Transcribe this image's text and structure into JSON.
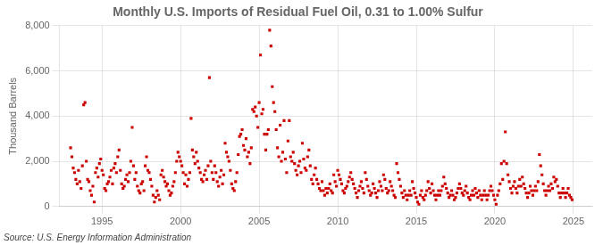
{
  "chart_data": {
    "type": "scatter",
    "title": "Monthly U.S. Imports of Residual Fuel Oil, 0.31 to 1.00% Sulfur",
    "ylabel": "Thousand Barrels",
    "annotations": [
      "Source: U.S. Energy Information Administration"
    ],
    "color": "#cc0000",
    "marker": "square",
    "grid": true,
    "xlim": [
      1992.3,
      2026.2
    ],
    "xticks": [
      1995,
      2000,
      2005,
      2010,
      2015,
      2020,
      2025
    ],
    "ylim": [
      0,
      8000
    ],
    "yticks": [
      0,
      {
        "value": 2000,
        "label": "2,000"
      },
      {
        "value": 4000,
        "label": "4,000"
      },
      {
        "value": 6000,
        "label": "6,000"
      },
      {
        "value": 8000,
        "label": "8,000"
      }
    ],
    "x": [
      1993,
      1993.0833333333,
      1993.1666666667,
      1993.25,
      1993.3333333333,
      1993.4166666667,
      1993.5,
      1993.5833333333,
      1993.6666666667,
      1993.75,
      1993.8333333333,
      1993.9166666667,
      1994,
      1994.0833333333,
      1994.1666666667,
      1994.25,
      1994.3333333333,
      1994.4166666667,
      1994.5,
      1994.5833333333,
      1994.6666666667,
      1994.75,
      1994.8333333333,
      1994.9166666667,
      1995,
      1995.0833333333,
      1995.1666666667,
      1995.25,
      1995.3333333333,
      1995.4166666667,
      1995.5,
      1995.5833333333,
      1995.6666666667,
      1995.75,
      1995.8333333333,
      1995.9166666667,
      1996,
      1996.0833333333,
      1996.1666666667,
      1996.25,
      1996.3333333333,
      1996.4166666667,
      1996.5,
      1996.5833333333,
      1996.6666666667,
      1996.75,
      1996.8333333333,
      1996.9166666667,
      1997,
      1997.0833333333,
      1997.1666666667,
      1997.25,
      1997.3333333333,
      1997.4166666667,
      1997.5,
      1997.5833333333,
      1997.6666666667,
      1997.75,
      1997.8333333333,
      1997.9166666667,
      1998,
      1998.0833333333,
      1998.1666666667,
      1998.25,
      1998.3333333333,
      1998.4166666667,
      1998.5,
      1998.5833333333,
      1998.6666666667,
      1998.75,
      1998.8333333333,
      1998.9166666667,
      1999,
      1999.0833333333,
      1999.1666666667,
      1999.25,
      1999.3333333333,
      1999.4166666667,
      1999.5,
      1999.5833333333,
      1999.6666666667,
      1999.75,
      1999.8333333333,
      1999.9166666667,
      2000,
      2000.0833333333,
      2000.1666666667,
      2000.25,
      2000.3333333333,
      2000.4166666667,
      2000.5,
      2000.5833333333,
      2000.6666666667,
      2000.75,
      2000.8333333333,
      2000.9166666667,
      2001,
      2001.0833333333,
      2001.1666666667,
      2001.25,
      2001.3333333333,
      2001.4166666667,
      2001.5,
      2001.5833333333,
      2001.6666666667,
      2001.75,
      2001.8333333333,
      2001.9166666667,
      2002,
      2002.0833333333,
      2002.1666666667,
      2002.25,
      2002.3333333333,
      2002.4166666667,
      2002.5,
      2002.5833333333,
      2002.6666666667,
      2002.75,
      2002.8333333333,
      2002.9166666667,
      2003,
      2003.0833333333,
      2003.1666666667,
      2003.25,
      2003.3333333333,
      2003.4166666667,
      2003.5,
      2003.5833333333,
      2003.6666666667,
      2003.75,
      2003.8333333333,
      2003.9166666667,
      2004,
      2004.0833333333,
      2004.1666666667,
      2004.25,
      2004.3333333333,
      2004.4166666667,
      2004.5,
      2004.5833333333,
      2004.6666666667,
      2004.75,
      2004.8333333333,
      2004.9166666667,
      2005,
      2005.0833333333,
      2005.1666666667,
      2005.25,
      2005.3333333333,
      2005.4166666667,
      2005.5,
      2005.5833333333,
      2005.6666666667,
      2005.75,
      2005.8333333333,
      2005.9166666667,
      2006,
      2006.0833333333,
      2006.1666666667,
      2006.25,
      2006.3333333333,
      2006.4166666667,
      2006.5,
      2006.5833333333,
      2006.6666666667,
      2006.75,
      2006.8333333333,
      2006.9166666667,
      2007,
      2007.0833333333,
      2007.1666666667,
      2007.25,
      2007.3333333333,
      2007.4166666667,
      2007.5,
      2007.5833333333,
      2007.6666666667,
      2007.75,
      2007.8333333333,
      2007.9166666667,
      2008,
      2008.0833333333,
      2008.1666666667,
      2008.25,
      2008.3333333333,
      2008.4166666667,
      2008.5,
      2008.5833333333,
      2008.6666666667,
      2008.75,
      2008.8333333333,
      2008.9166666667,
      2009,
      2009.0833333333,
      2009.1666666667,
      2009.25,
      2009.3333333333,
      2009.4166666667,
      2009.5,
      2009.5833333333,
      2009.6666666667,
      2009.75,
      2009.8333333333,
      2009.9166666667,
      2010,
      2010.0833333333,
      2010.1666666667,
      2010.25,
      2010.3333333333,
      2010.4166666667,
      2010.5,
      2010.5833333333,
      2010.6666666667,
      2010.75,
      2010.8333333333,
      2010.9166666667,
      2011,
      2011.0833333333,
      2011.1666666667,
      2011.25,
      2011.3333333333,
      2011.4166666667,
      2011.5,
      2011.5833333333,
      2011.6666666667,
      2011.75,
      2011.8333333333,
      2011.9166666667,
      2012,
      2012.0833333333,
      2012.1666666667,
      2012.25,
      2012.3333333333,
      2012.4166666667,
      2012.5,
      2012.5833333333,
      2012.6666666667,
      2012.75,
      2012.8333333333,
      2012.9166666667,
      2013,
      2013.0833333333,
      2013.1666666667,
      2013.25,
      2013.3333333333,
      2013.4166666667,
      2013.5,
      2013.5833333333,
      2013.6666666667,
      2013.75,
      2013.8333333333,
      2013.9166666667,
      2014,
      2014.0833333333,
      2014.1666666667,
      2014.25,
      2014.3333333333,
      2014.4166666667,
      2014.5,
      2014.5833333333,
      2014.6666666667,
      2014.75,
      2014.8333333333,
      2014.9166666667,
      2015,
      2015.0833333333,
      2015.1666666667,
      2015.25,
      2015.3333333333,
      2015.4166666667,
      2015.5,
      2015.5833333333,
      2015.6666666667,
      2015.75,
      2015.8333333333,
      2015.9166666667,
      2016,
      2016.0833333333,
      2016.1666666667,
      2016.25,
      2016.3333333333,
      2016.4166666667,
      2016.5,
      2016.5833333333,
      2016.6666666667,
      2016.75,
      2016.8333333333,
      2016.9166666667,
      2017,
      2017.0833333333,
      2017.1666666667,
      2017.25,
      2017.3333333333,
      2017.4166666667,
      2017.5,
      2017.5833333333,
      2017.6666666667,
      2017.75,
      2017.8333333333,
      2017.9166666667,
      2018,
      2018.0833333333,
      2018.1666666667,
      2018.25,
      2018.3333333333,
      2018.4166666667,
      2018.5,
      2018.5833333333,
      2018.6666666667,
      2018.75,
      2018.8333333333,
      2018.9166666667,
      2019,
      2019.0833333333,
      2019.1666666667,
      2019.25,
      2019.3333333333,
      2019.4166666667,
      2019.5,
      2019.5833333333,
      2019.6666666667,
      2019.75,
      2019.8333333333,
      2019.9166666667,
      2020,
      2020.0833333333,
      2020.1666666667,
      2020.25,
      2020.3333333333,
      2020.4166666667,
      2020.5,
      2020.5833333333,
      2020.6666666667,
      2020.75,
      2020.8333333333,
      2020.9166666667,
      2021,
      2021.0833333333,
      2021.1666666667,
      2021.25,
      2021.3333333333,
      2021.4166666667,
      2021.5,
      2021.5833333333,
      2021.6666666667,
      2021.75,
      2021.8333333333,
      2021.9166666667,
      2022,
      2022.0833333333,
      2022.1666666667,
      2022.25,
      2022.3333333333,
      2022.4166666667,
      2022.5,
      2022.5833333333,
      2022.6666666667,
      2022.75,
      2022.8333333333,
      2022.9166666667,
      2023,
      2023.0833333333,
      2023.1666666667,
      2023.25,
      2023.3333333333,
      2023.4166666667,
      2023.5,
      2023.5833333333,
      2023.6666666667,
      2023.75,
      2023.8333333333,
      2023.9166666667,
      2024,
      2024.0833333333,
      2024.1666666667,
      2024.25,
      2024.3333333333,
      2024.4166666667,
      2024.5,
      2024.5833333333,
      2024.6666666667,
      2024.75,
      2024.8333333333,
      2024.9166666667
    ],
    "values": [
      2600,
      2200,
      1700,
      1500,
      1200,
      1000,
      1600,
      1100,
      800,
      1800,
      4500,
      4600,
      2000,
      1200,
      1100,
      700,
      500,
      900,
      200,
      1500,
      1700,
      1300,
      1900,
      2100,
      1600,
      1400,
      800,
      700,
      1000,
      1100,
      1300,
      1600,
      1000,
      1700,
      1900,
      1500,
      2200,
      2500,
      1600,
      1000,
      800,
      900,
      1200,
      1400,
      1100,
      1500,
      2000,
      3500,
      1800,
      1200,
      1500,
      900,
      700,
      600,
      1000,
      1100,
      700,
      1800,
      2200,
      1600,
      1500,
      1200,
      900,
      500,
      200,
      400,
      700,
      500,
      300,
      1400,
      1600,
      1300,
      1100,
      900,
      1000,
      700,
      500,
      600,
      900,
      1100,
      1500,
      2000,
      2400,
      2200,
      2000,
      1800,
      1500,
      1000,
      1400,
      900,
      1200,
      1500,
      3900,
      2500,
      2200,
      1900,
      2400,
      2000,
      1700,
      1500,
      1200,
      1100,
      1400,
      1600,
      1200,
      1800,
      5700,
      2000,
      1500,
      1200,
      1800,
      1500,
      1100,
      900,
      1300,
      1600,
      1000,
      1400,
      2800,
      2400,
      2200,
      2000,
      1600,
      1000,
      800,
      700,
      1100,
      1500,
      2300,
      3100,
      3200,
      3400,
      2700,
      2500,
      3000,
      2200,
      2400,
      1900,
      2600,
      4300,
      4200,
      4400,
      4000,
      3500,
      4600,
      6700,
      4100,
      4300,
      3200,
      2500,
      3200,
      3400,
      7800,
      7100,
      5300,
      4600,
      4200,
      3400,
      2600,
      2200,
      3600,
      2000,
      2400,
      3800,
      2100,
      1500,
      2900,
      3800,
      2200,
      2000,
      2400,
      1900,
      1600,
      1400,
      1800,
      2000,
      1500,
      2800,
      2100,
      1700,
      1600,
      2200,
      2500,
      1800,
      1200,
      1000,
      1400,
      1700,
      1200,
      1000,
      800,
      700,
      1100,
      700,
      500,
      800,
      600,
      800,
      1000,
      700,
      600,
      1400,
      1100,
      900,
      1600,
      1400,
      1200,
      1000,
      700,
      600,
      800,
      900,
      1100,
      1300,
      1500,
      1200,
      1000,
      800,
      600,
      400,
      700,
      900,
      1100,
      800,
      600,
      1500,
      1200,
      900,
      700,
      500,
      600,
      1000,
      800,
      600,
      400,
      700,
      1100,
      900,
      700,
      1400,
      1200,
      800,
      600,
      700,
      1100,
      900,
      700,
      500,
      400,
      1900,
      1500,
      1200,
      900,
      600,
      400,
      700,
      500,
      300,
      500,
      700,
      500,
      1100,
      800,
      600,
      400,
      200,
      100,
      500,
      700,
      400,
      300,
      500,
      700,
      1100,
      800,
      600,
      1000,
      700,
      500,
      300,
      500,
      700,
      500,
      700,
      900,
      1300,
      1000,
      800,
      600,
      400,
      500,
      700,
      500,
      300,
      400,
      600,
      800,
      1000,
      800,
      600,
      500,
      700,
      900,
      600,
      400,
      300,
      500,
      700,
      500,
      800,
      600,
      400,
      700,
      500,
      300,
      500,
      700,
      500,
      300,
      500,
      700,
      900,
      700,
      500,
      300,
      100,
      500,
      700,
      1000,
      1900,
      1200,
      2000,
      3300,
      1900,
      1400,
      1100,
      800,
      600,
      900,
      1100,
      800,
      600,
      900,
      1200,
      900,
      1300,
      1000,
      800,
      600,
      400,
      600,
      900,
      700,
      500,
      700,
      900,
      700,
      1100,
      2300,
      1800,
      1400,
      1000,
      700,
      500,
      700,
      900,
      700,
      1000,
      800,
      1300,
      1100,
      1200,
      900,
      600,
      400,
      600,
      800,
      600,
      400,
      600,
      800,
      500,
      400,
      300
    ]
  }
}
